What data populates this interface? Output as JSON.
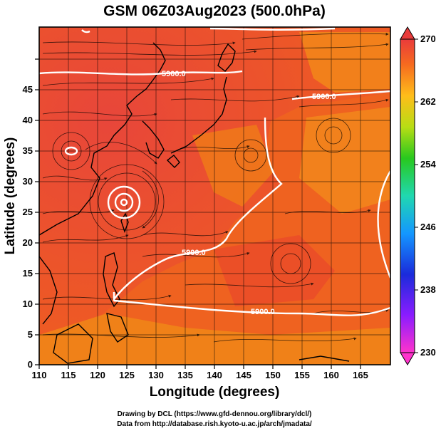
{
  "title": "GSM 06Z03Aug2023 (500.0hPa)",
  "x_axis": {
    "label": "Longitude (degrees)",
    "range": [
      110,
      170
    ],
    "ticks": [
      "110",
      "115",
      "120",
      "125",
      "130",
      "135",
      "140",
      "145",
      "150",
      "155",
      "160",
      "165"
    ]
  },
  "y_axis": {
    "label": "Latitude  (degrees)",
    "range": [
      0,
      50
    ],
    "ticks": [
      "0",
      "5",
      "10",
      "15",
      "20",
      "25",
      "30",
      "35",
      "40",
      "45"
    ]
  },
  "colorbar": {
    "range": [
      230,
      270
    ],
    "ticks": [
      "270",
      "262",
      "254",
      "246",
      "238",
      "230"
    ]
  },
  "contours": [
    {
      "label": "5900.0",
      "lon": 124,
      "lat": 45.3
    },
    {
      "label": "5900.0",
      "lon": 154,
      "lat": 41.5
    },
    {
      "label": "5900.0",
      "lon": 136,
      "lat": 18.5
    },
    {
      "label": "5900.0",
      "lon": 151,
      "lat": 9.5
    }
  ],
  "credits": {
    "line1": "Drawing by DCL (https://www.gfd-dennou.org/library/dcl/)",
    "line2": "Data from http://database.rish.kyoto-u.ac.jp/arch/jmadata/"
  },
  "colors": {
    "field_warm": "#e8392a",
    "field_mid": "#ef6a1c",
    "field_cool": "#f08d14",
    "land_outline": "#000000",
    "contour": "#ffffff",
    "streamline": "#000000"
  }
}
